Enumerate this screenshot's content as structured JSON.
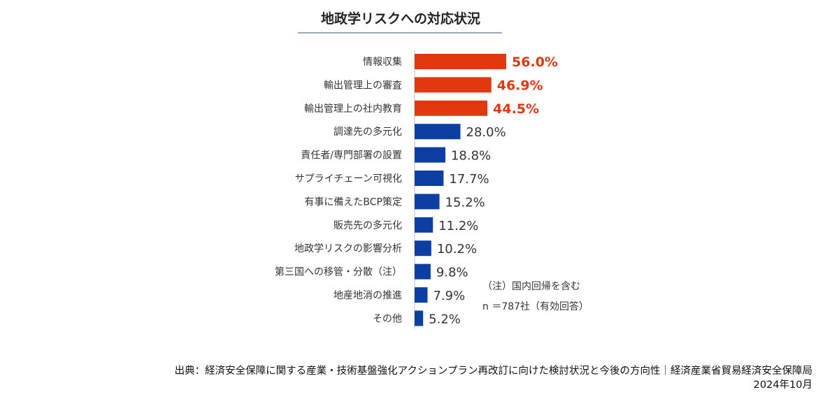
{
  "chart_data": {
    "type": "bar",
    "orientation": "horizontal",
    "title": "地政学リスクへの対応状況",
    "categories": [
      "情報収集",
      "輸出管理上の審査",
      "輸出管理上の社内教育",
      "調達先の多元化",
      "責任者/専門部署の設置",
      "サプライチェーン可視化",
      "有事に備えたBCP策定",
      "販売先の多元化",
      "地政学リスクの影響分析",
      "第三国への移管・分散（注）",
      "地産地消の推進",
      "その他"
    ],
    "values": [
      56.0,
      46.9,
      44.5,
      28.0,
      18.8,
      17.7,
      15.2,
      11.2,
      10.2,
      9.8,
      7.9,
      5.2
    ],
    "value_labels": [
      "56.0%",
      "46.9%",
      "44.5%",
      "28.0%",
      "18.8%",
      "17.7%",
      "15.2%",
      "11.2%",
      "10.2%",
      "9.8%",
      "7.9%",
      "5.2%"
    ],
    "unit": "%",
    "highlight_top_n": 3,
    "colors": {
      "highlight": "#e2380f",
      "default": "#0d3ea3"
    },
    "grid": false
  },
  "notes": [
    "（注）国内回帰を含む",
    "n ＝787社（有効回答）"
  ],
  "source": [
    "出典：経済安全保障に関する産業・技術基盤強化アクションプラン再改訂に向けた検討状況と今後の方向性｜経済産業省貿易経済安全保障局",
    "2024年10月"
  ]
}
